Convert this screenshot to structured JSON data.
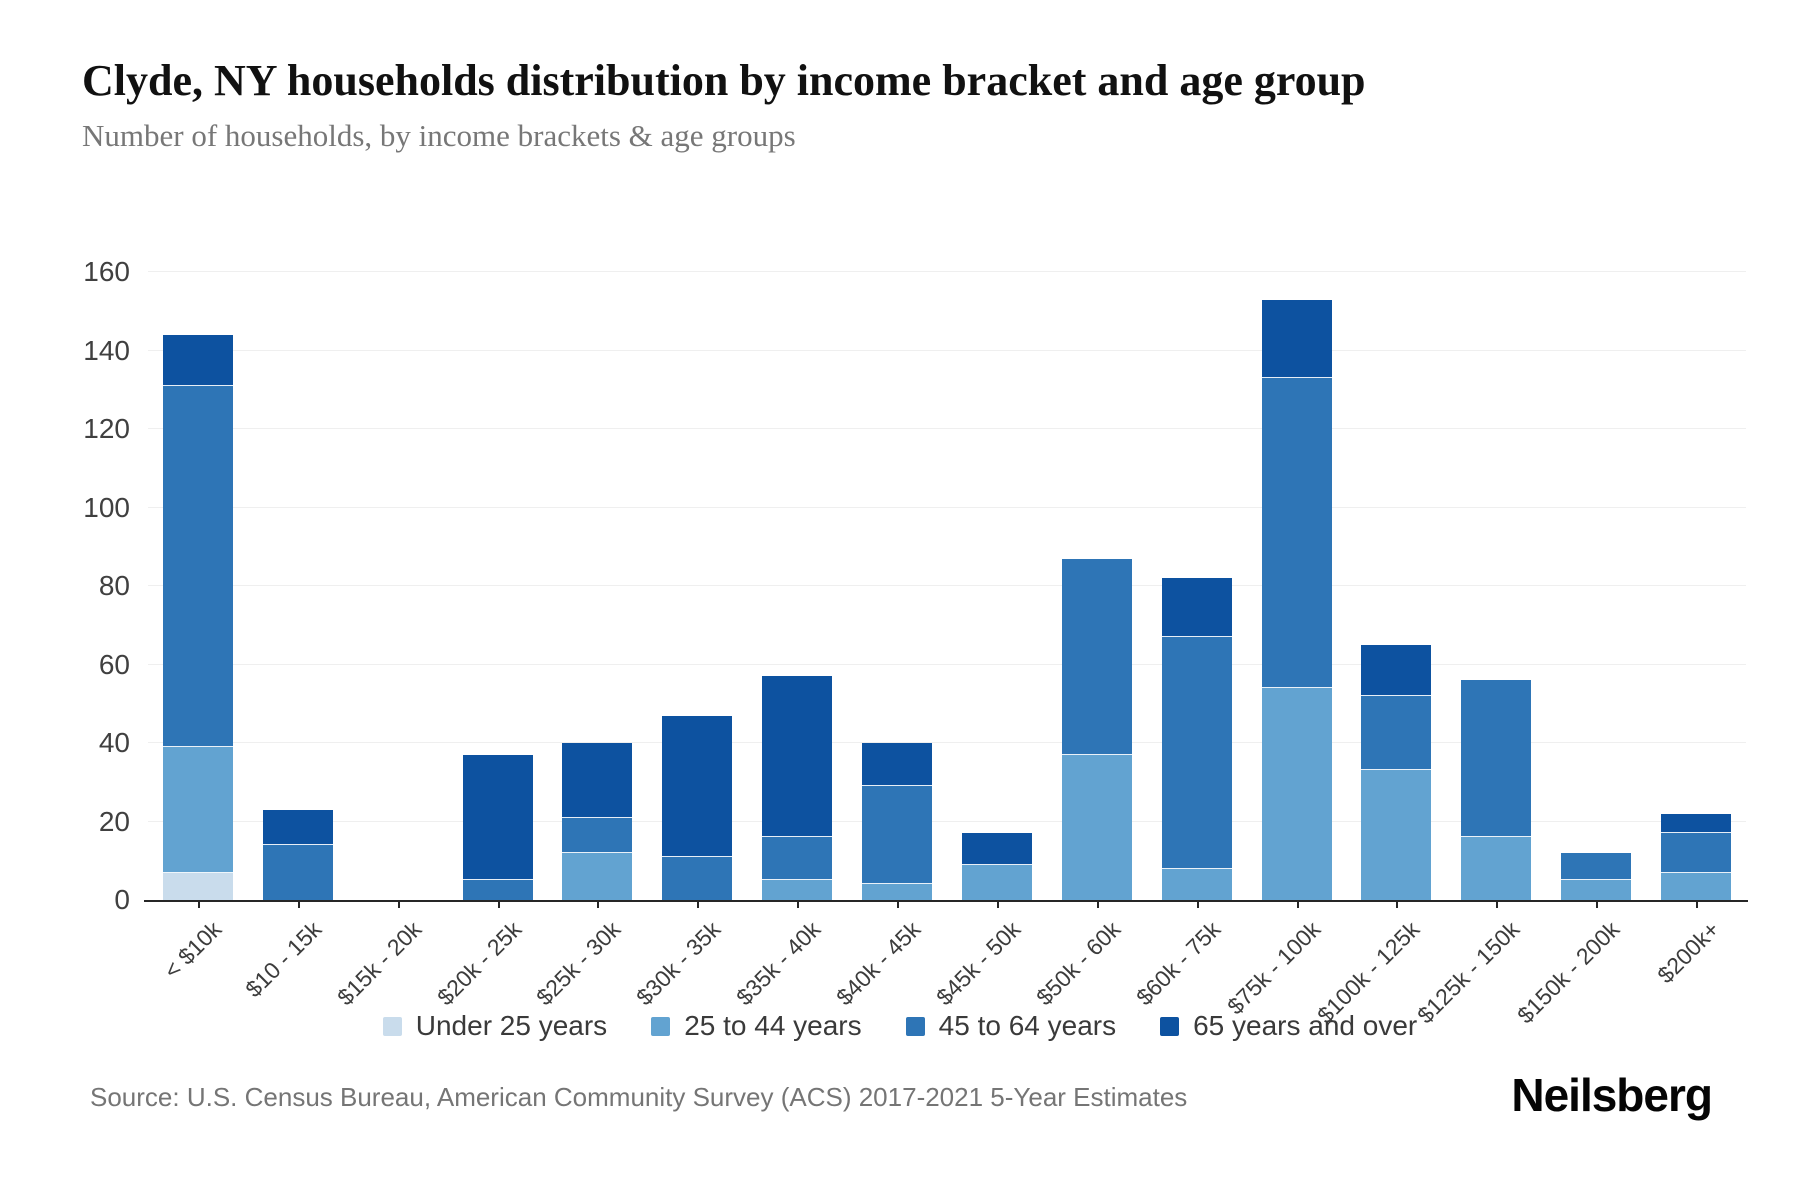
{
  "header": {
    "title": "Clyde, NY households distribution by income bracket and age group",
    "subtitle": "Number of households, by income brackets & age groups"
  },
  "chart_data": {
    "type": "bar",
    "stacked": true,
    "title": "Clyde, NY households distribution by income bracket and age group",
    "xlabel": "",
    "ylabel": "",
    "ylim": [
      0,
      160
    ],
    "yticks": [
      0,
      20,
      40,
      60,
      80,
      100,
      120,
      140,
      160
    ],
    "grid": true,
    "legend_position": "bottom",
    "categories": [
      "< $10k",
      "$10 - 15k",
      "$15k - 20k",
      "$20k - 25k",
      "$25k - 30k",
      "$30k - 35k",
      "$35k - 40k",
      "$40k - 45k",
      "$45k - 50k",
      "$50k - 60k",
      "$60k - 75k",
      "$75k - 100k",
      "$100k - 125k",
      "$125k - 150k",
      "$150k - 200k",
      "$200k+"
    ],
    "series": [
      {
        "name": "Under 25 years",
        "color": "#c9dcec",
        "values": [
          7,
          0,
          0,
          0,
          0,
          0,
          0,
          0,
          0,
          0,
          0,
          0,
          0,
          0,
          0,
          0
        ]
      },
      {
        "name": "25 to 44 years",
        "color": "#62a3d1",
        "values": [
          32,
          0,
          0,
          0,
          12,
          0,
          5,
          4,
          9,
          37,
          8,
          54,
          33,
          16,
          5,
          7
        ]
      },
      {
        "name": "45 to 64 years",
        "color": "#2e75b6",
        "values": [
          92,
          14,
          0,
          5,
          9,
          11,
          11,
          25,
          0,
          50,
          59,
          79,
          19,
          40,
          7,
          10
        ]
      },
      {
        "name": "65 years and over",
        "color": "#0d52a0",
        "values": [
          13,
          9,
          0,
          32,
          19,
          36,
          41,
          11,
          8,
          0,
          15,
          20,
          13,
          0,
          0,
          5
        ]
      }
    ],
    "totals": [
      144,
      23,
      0,
      37,
      40,
      47,
      57,
      40,
      17,
      87,
      82,
      153,
      65,
      56,
      12,
      22
    ]
  },
  "footer": {
    "source": "Source: U.S. Census Bureau, American Community Survey (ACS) 2017-2021 5-Year Estimates",
    "logo": "Neilsberg"
  }
}
